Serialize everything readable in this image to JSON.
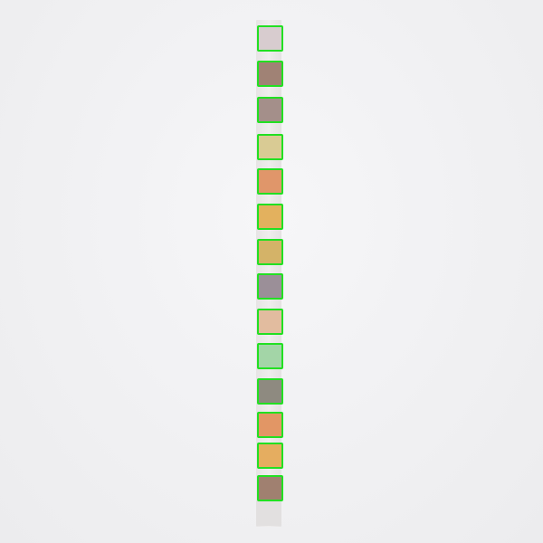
{
  "colors": {
    "highlight": "#22e022",
    "strip": "#ebe9e9",
    "background": "#f1f1f3"
  },
  "pads": [
    {
      "color": "#d8cccf"
    },
    {
      "color": "#a08275"
    },
    {
      "color": "#a48f8a"
    },
    {
      "color": "#d9cb94"
    },
    {
      "color": "#e0966a"
    },
    {
      "color": "#e3b15e"
    },
    {
      "color": "#d4b368"
    },
    {
      "color": "#9b8f98"
    },
    {
      "color": "#e2bc9f"
    },
    {
      "color": "#a3d5a7"
    },
    {
      "color": "#8e8a80"
    },
    {
      "color": "#e29665"
    },
    {
      "color": "#e5ad60"
    },
    {
      "color": "#a08070"
    }
  ]
}
